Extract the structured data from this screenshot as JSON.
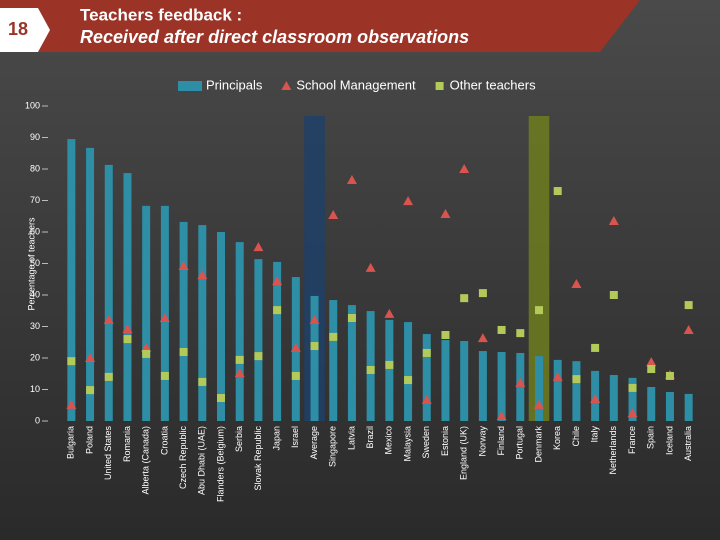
{
  "page_number": "18",
  "chart_data": {
    "type": "bar",
    "title": "Teachers feedback :",
    "subtitle": "Received after direct classroom observations",
    "y_label": "Percentage of teachers",
    "categories": [
      "Bulgaria",
      "Poland",
      "United States",
      "Romania",
      "Alberta (Canada)",
      "Croatia",
      "Czech Republic",
      "Abu Dhabi (UAE)",
      "Flanders (Belgium)",
      "Serbia",
      "Slovak Republic",
      "Japan",
      "Israel",
      "Average",
      "Singapore",
      "Latvia",
      "Brazil",
      "Mexico",
      "Malaysia",
      "Sweden",
      "Estonia",
      "England (UK)",
      "Norway",
      "Finland",
      "Portugal",
      "Denmark",
      "Korea",
      "Chile",
      "Italy",
      "Netherlands",
      "France",
      "Spain",
      "Iceland",
      "Australia"
    ],
    "series": [
      {
        "name": "Principals",
        "color": "#2e8ea6",
        "marker": "bar",
        "values": [
          89.5,
          86.7,
          81.3,
          78.7,
          68.3,
          68.3,
          63.2,
          62.2,
          60,
          56.8,
          51.4,
          50.5,
          45.7,
          39.7,
          38.4,
          36.8,
          34.9,
          32.1,
          31.4,
          27.6,
          25.7,
          25.4,
          22.2,
          21.9,
          21.6,
          20.6,
          19.4,
          19,
          15.9,
          14.6,
          13.7,
          10.8,
          9.2,
          8.6
        ]
      },
      {
        "name": "School Management",
        "color": "#d9534f",
        "marker": "triangle",
        "values": [
          5.1,
          20,
          32.1,
          29.2,
          23.2,
          32.7,
          49.2,
          46.3,
          null,
          15.2,
          55.2,
          44.4,
          23.2,
          32.1,
          65.4,
          76.5,
          48.6,
          34,
          69.8,
          6.7,
          65.7,
          80,
          26.3,
          1.6,
          12.1,
          5.1,
          14,
          43.5,
          7,
          63.5,
          2.5,
          18.7,
          14.6,
          28.9
        ]
      },
      {
        "name": "Other teachers",
        "color": "#b3c95a",
        "marker": "square",
        "values": [
          19,
          9.8,
          14,
          26,
          21.3,
          14.3,
          21.9,
          12.4,
          7.3,
          19.4,
          20.6,
          35.2,
          14.3,
          23.8,
          26.7,
          32.7,
          16.2,
          17.8,
          13,
          21.6,
          27.3,
          39,
          40.6,
          28.9,
          27.9,
          35.2,
          73,
          13.3,
          23.2,
          40,
          10.5,
          16.5,
          14.3,
          36.8
        ]
      }
    ],
    "highlights": [
      {
        "index": 13,
        "color": "#1f4068"
      },
      {
        "index": 25,
        "color": "#6d7d1e"
      }
    ],
    "ylim": [
      0,
      100
    ],
    "yticks": [
      0,
      10,
      20,
      30,
      40,
      50,
      60,
      70,
      80,
      90,
      100
    ],
    "grid": false
  }
}
